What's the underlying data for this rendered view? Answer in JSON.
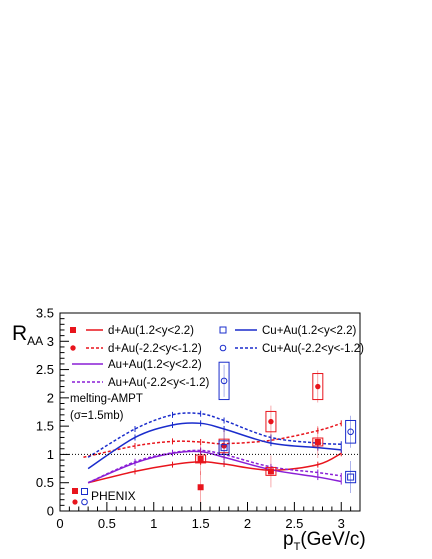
{
  "chart_data": {
    "type": "line",
    "title": "",
    "xlabel": "p",
    "xlabel_sub": "T",
    "xlabel_unit": "(GeV/c)",
    "ylabel": "R",
    "ylabel_sub": "AA",
    "xlim": [
      0,
      3.2
    ],
    "ylim": [
      0,
      3.5
    ],
    "x_ticks": [
      "0",
      "0.5",
      "1",
      "1.5",
      "2",
      "2.5",
      "3"
    ],
    "y_ticks": [
      "0",
      "0.5",
      "1",
      "1.5",
      "2",
      "2.5",
      "3",
      "3.5"
    ],
    "reference_line": 1,
    "grid": false,
    "legend_position": "top-left",
    "legend": [
      {
        "label": "d+Au(1.2<y<2.2)",
        "color": "#e8141c",
        "style": "solid",
        "marker": "square"
      },
      {
        "label": "d+Au(-2.2<y<-1.2)",
        "color": "#e8141c",
        "style": "dotted",
        "marker": "circle"
      },
      {
        "label": "Au+Au(1.2<y<2.2)",
        "color": "#8a1fd6",
        "style": "solid",
        "marker": ""
      },
      {
        "label": "Au+Au(-2.2<y<-1.2)",
        "color": "#8a1fd6",
        "style": "dotted",
        "marker": ""
      },
      {
        "label": "Cu+Au(1.2<y<2.2)",
        "color": "#1a2ccc",
        "style": "solid",
        "marker": "open-square"
      },
      {
        "label": "Cu+Au(-2.2<y<-1.2)",
        "color": "#1a2ccc",
        "style": "dotted",
        "marker": "open-circle"
      }
    ],
    "model_label": "melting-AMPT",
    "model_param": "(σ=1.5mb)",
    "phenix_label": "PHENIX",
    "series": [
      {
        "name": "d+Au(1.2<y<2.2)",
        "kind": "model",
        "color": "#e8141c",
        "style": "solid",
        "x": [
          0.3,
          0.8,
          1.2,
          1.5,
          1.75,
          2.25,
          2.75,
          3.0
        ],
        "y": [
          0.5,
          0.7,
          0.82,
          0.87,
          0.83,
          0.72,
          0.82,
          1.02
        ]
      },
      {
        "name": "d+Au(-2.2<y<-1.2)",
        "kind": "model",
        "color": "#e8141c",
        "style": "dotted",
        "x": [
          0.25,
          0.8,
          1.2,
          1.5,
          1.75,
          2.25,
          2.75,
          3.0
        ],
        "y": [
          0.95,
          1.15,
          1.23,
          1.22,
          1.19,
          1.25,
          1.42,
          1.55
        ]
      },
      {
        "name": "Au+Au(1.2<y<2.2)",
        "kind": "model",
        "color": "#8a1fd6",
        "style": "solid",
        "x": [
          0.3,
          0.8,
          1.2,
          1.5,
          1.75,
          2.25,
          2.75,
          3.0
        ],
        "y": [
          0.5,
          0.85,
          1.02,
          1.05,
          0.95,
          0.73,
          0.6,
          0.52
        ]
      },
      {
        "name": "Au+Au(-2.2<y<-1.2)",
        "kind": "model",
        "color": "#8a1fd6",
        "style": "dotted",
        "x": [
          0.3,
          0.8,
          1.2,
          1.5,
          1.75,
          2.25,
          2.75,
          3.0
        ],
        "y": [
          0.5,
          0.87,
          1.03,
          1.07,
          1.0,
          0.78,
          0.68,
          0.62
        ]
      },
      {
        "name": "Cu+Au(1.2<y<2.2)",
        "kind": "model",
        "color": "#1a2ccc",
        "style": "solid",
        "x": [
          0.3,
          0.8,
          1.2,
          1.5,
          1.75,
          2.25,
          2.75,
          3.0
        ],
        "y": [
          0.75,
          1.3,
          1.52,
          1.55,
          1.45,
          1.2,
          1.12,
          1.08
        ]
      },
      {
        "name": "Cu+Au(-2.2<y<-1.2)",
        "kind": "model",
        "color": "#1a2ccc",
        "style": "dotted",
        "x": [
          0.3,
          0.8,
          1.2,
          1.5,
          1.75,
          2.25,
          2.75,
          3.0
        ],
        "y": [
          0.95,
          1.45,
          1.7,
          1.72,
          1.6,
          1.3,
          1.2,
          1.18
        ]
      },
      {
        "name": "d+Au(1.2<y<2.2)",
        "kind": "data",
        "marker": "square",
        "color": "#e8141c",
        "x": [
          1.5,
          1.5,
          2.25,
          2.75
        ],
        "y": [
          0.42,
          0.92,
          0.7,
          1.22
        ],
        "sys": [
          0.0,
          0.07,
          0.07,
          0.07
        ]
      },
      {
        "name": "d+Au(-2.2<y<-1.2)",
        "kind": "data",
        "marker": "circle",
        "color": "#e8141c",
        "x": [
          1.75,
          2.25,
          2.75
        ],
        "y": [
          1.15,
          1.58,
          2.2
        ],
        "sys": [
          0.12,
          0.18,
          0.23
        ]
      },
      {
        "name": "Cu+Au(1.2<y<2.2)",
        "kind": "data",
        "marker": "open-square",
        "color": "#1a2ccc",
        "x": [
          1.75,
          3.1
        ],
        "y": [
          1.12,
          0.6
        ],
        "sys": [
          0.12,
          0.1
        ]
      },
      {
        "name": "Cu+Au(-2.2<y<-1.2)",
        "kind": "data",
        "marker": "open-circle",
        "color": "#1a2ccc",
        "x": [
          1.75,
          3.1
        ],
        "y": [
          2.3,
          1.4
        ],
        "sys": [
          0.33,
          0.2
        ]
      }
    ]
  }
}
